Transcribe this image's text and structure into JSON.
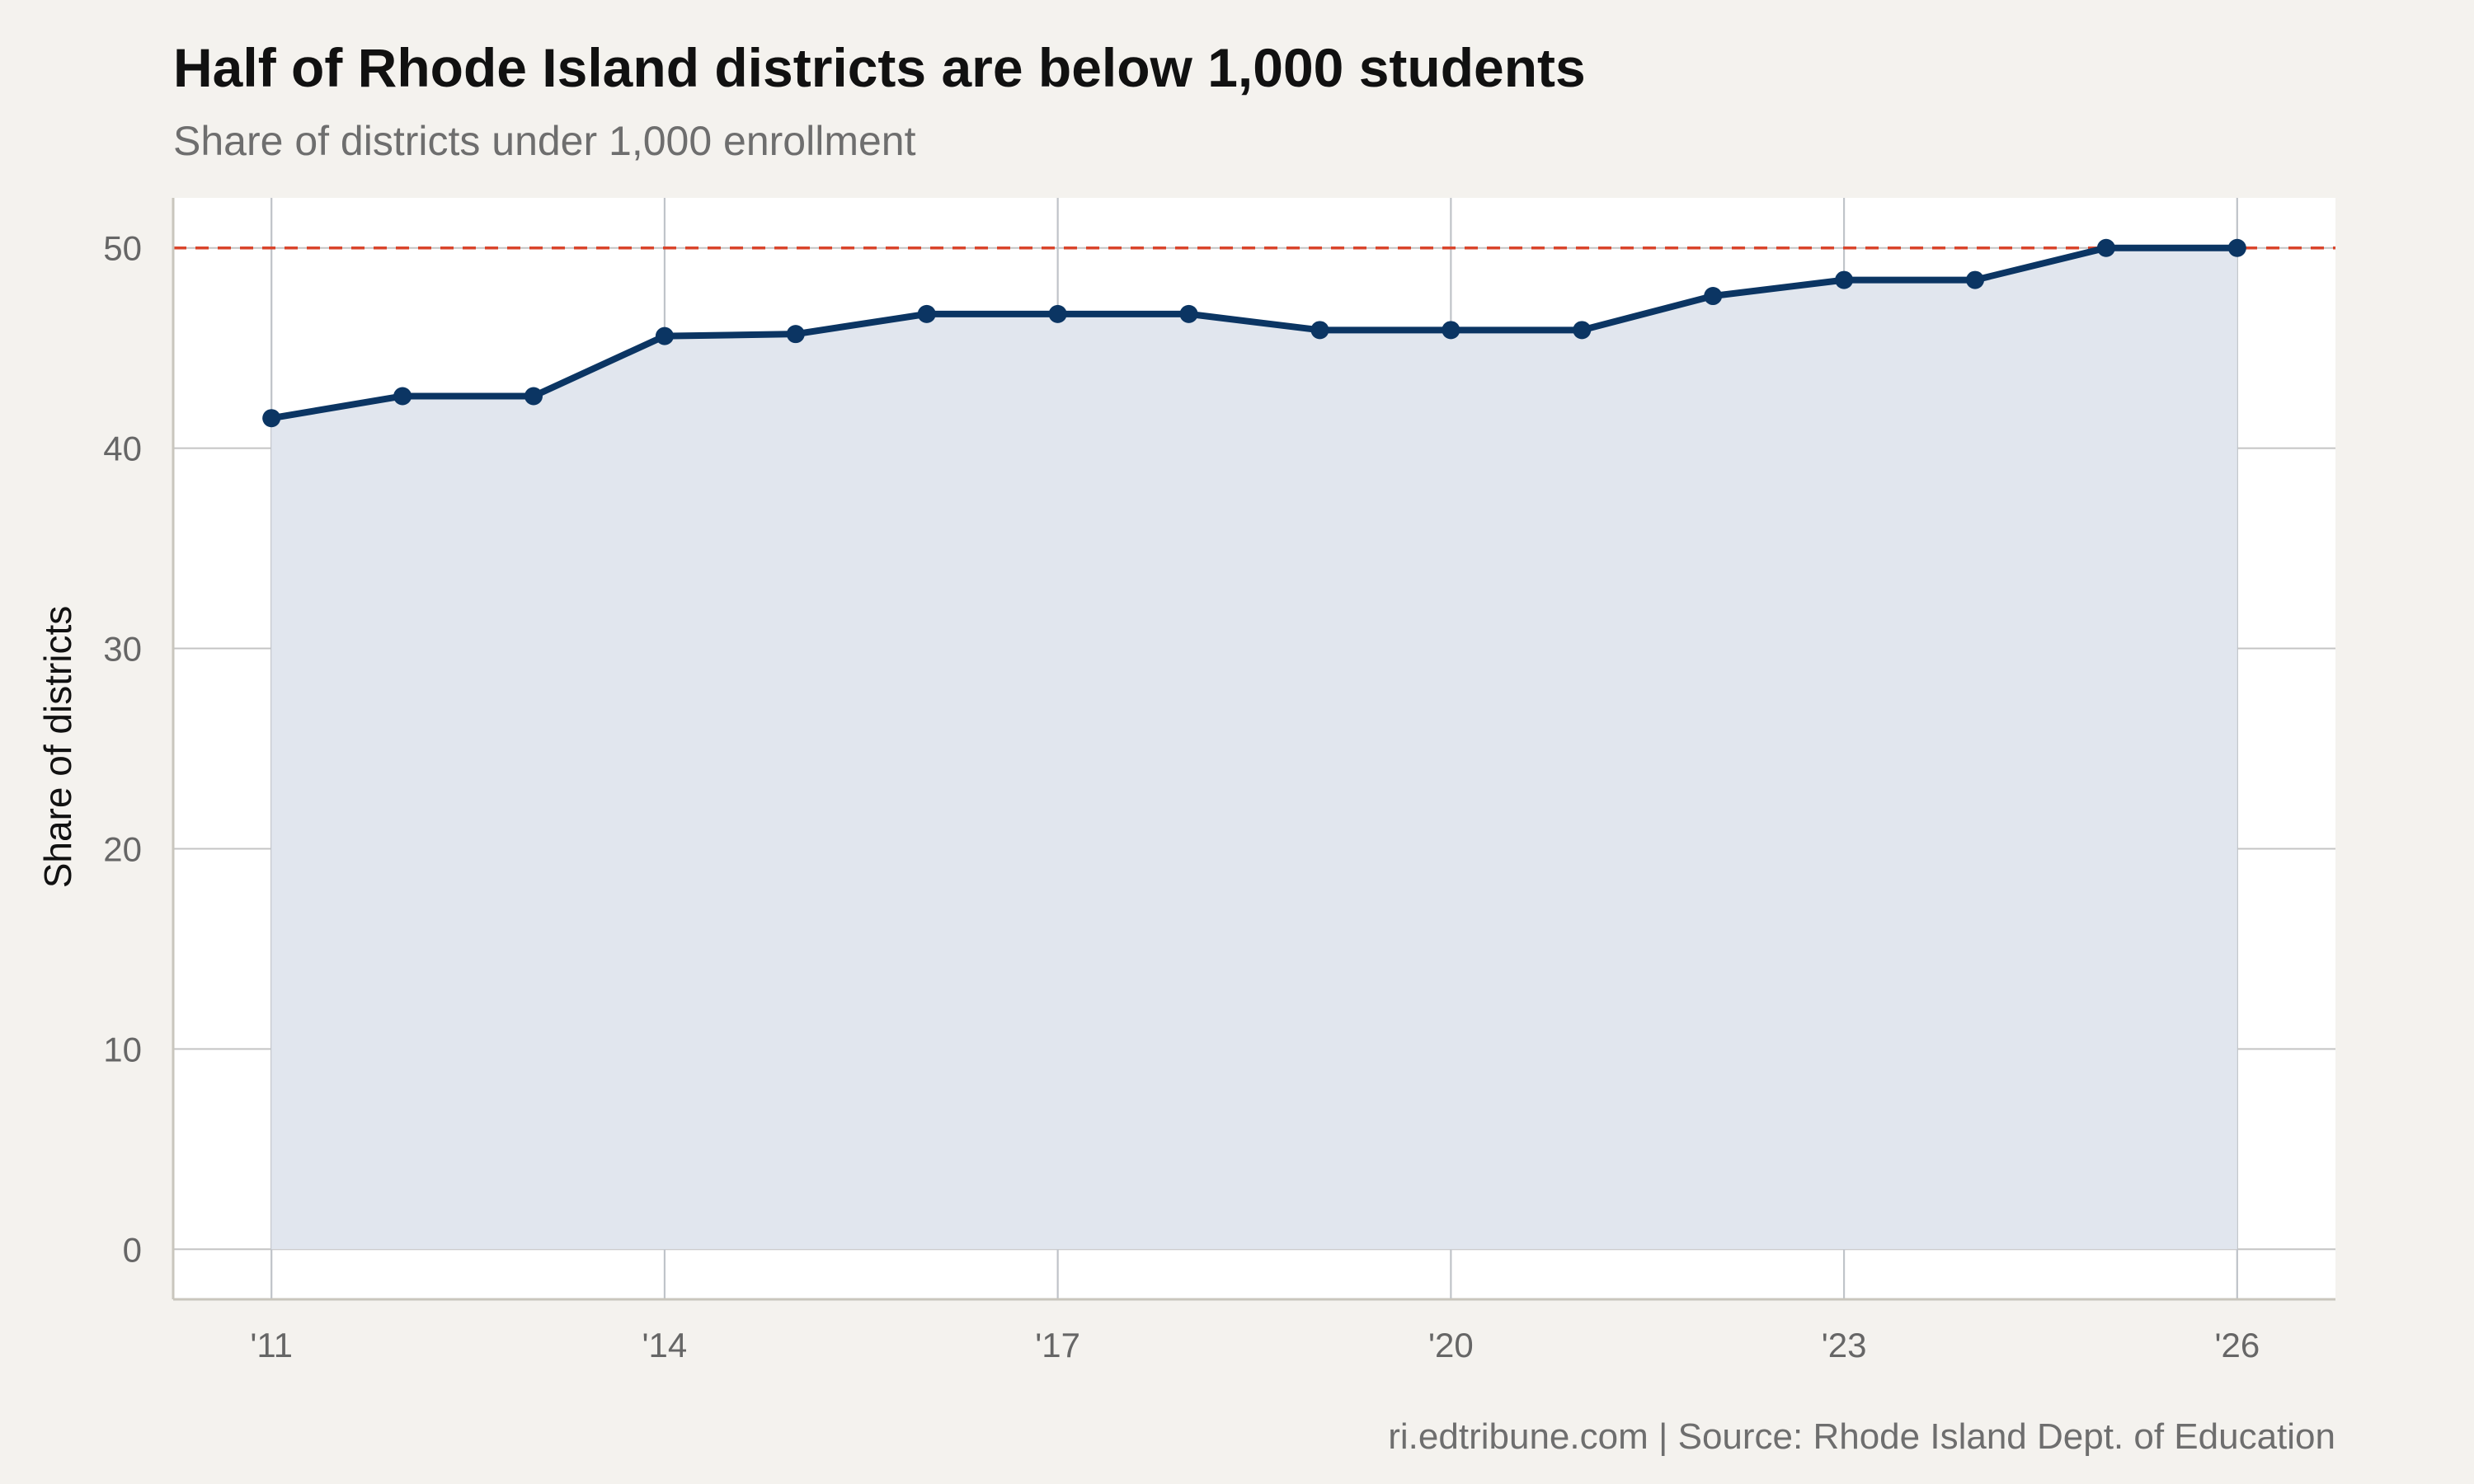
{
  "chart_data": {
    "type": "area",
    "title": "Half of Rhode Island districts are below 1,000 students",
    "subtitle": "Share of districts under 1,000 enrollment",
    "caption": "ri.edtribune.com | Source: Rhode Island Dept. of Education",
    "xlabel": "",
    "ylabel": "Share of districts",
    "x": [
      2011,
      2012,
      2013,
      2014,
      2015,
      2016,
      2017,
      2018,
      2019,
      2020,
      2021,
      2022,
      2023,
      2024,
      2025,
      2026
    ],
    "series": [
      {
        "values": [
          41.5,
          42.6,
          42.6,
          45.6,
          45.7,
          46.7,
          46.7,
          46.7,
          45.9,
          45.9,
          45.9,
          47.6,
          48.4,
          48.4,
          50.0,
          50.0
        ]
      }
    ],
    "reference_line": {
      "y": 50,
      "style": "dashed",
      "color": "#d9442b"
    },
    "x_ticks": [
      2011,
      2014,
      2017,
      2020,
      2023,
      2026
    ],
    "x_tick_labels": [
      "'11",
      "'14",
      "'17",
      "'20",
      "'23",
      "'26"
    ],
    "y_ticks": [
      0,
      10,
      20,
      30,
      40,
      50
    ],
    "y_tick_labels": [
      "0",
      "10",
      "20",
      "30",
      "40",
      "50"
    ],
    "xlim": [
      2010.25,
      2026.75
    ],
    "ylim": [
      -2.5,
      52.5
    ],
    "grid": true,
    "colors": {
      "line": "#0b3563",
      "area": "#e1e6ee",
      "panel": "#ffffff",
      "background": "#f4f2ee",
      "grid": "#c4c4c4"
    }
  }
}
